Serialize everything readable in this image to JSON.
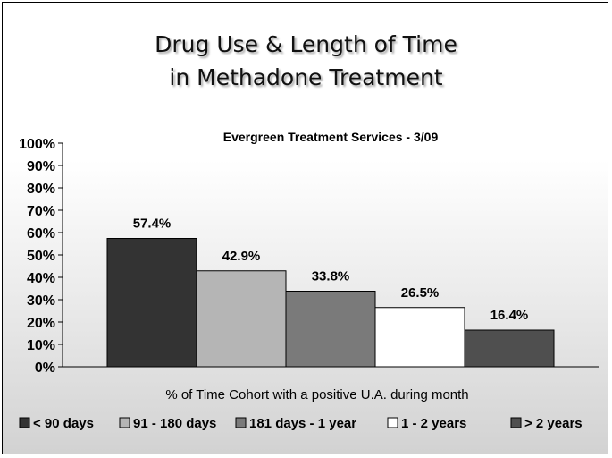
{
  "chart_data": {
    "type": "bar",
    "title_lines": [
      "Drug Use & Length of Time",
      "in Methadone Treatment"
    ],
    "subtitle": "Evergreen Treatment Services - 3/09",
    "xlabel": "% of Time Cohort with a positive U.A. during month",
    "ylabel": "",
    "ylim": [
      0,
      100
    ],
    "yticks": [
      "0%",
      "10%",
      "20%",
      "30%",
      "40%",
      "50%",
      "60%",
      "70%",
      "80%",
      "90%",
      "100%"
    ],
    "grid": false,
    "legend_position": "bottom",
    "categories": [
      "< 90 days",
      "91 - 180 days",
      "181 days - 1 year",
      "1 - 2 years",
      "> 2 years"
    ],
    "values": [
      57.4,
      42.9,
      33.8,
      26.5,
      16.4
    ],
    "value_labels": [
      "57.4%",
      "42.9%",
      "33.8%",
      "26.5%",
      "16.4%"
    ],
    "colors": [
      "#333333",
      "#b5b5b5",
      "#7a7a7a",
      "#ffffff",
      "#4f4f4f"
    ]
  }
}
